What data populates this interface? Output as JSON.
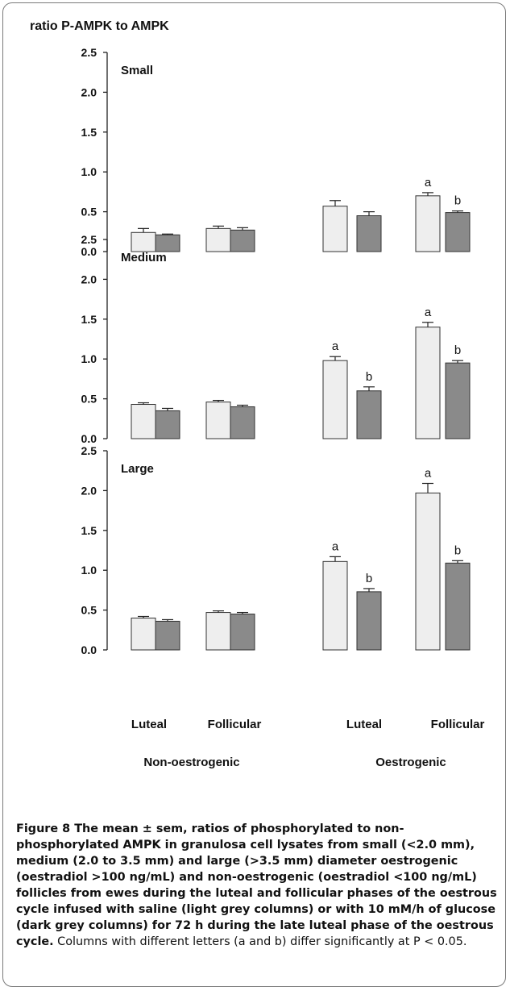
{
  "figure": {
    "ylabel": "ratio P-AMPK to AMPK",
    "caption_bold": "Figure 8 The mean ± sem, ratios of phosphorylated to non-phosphorylated AMPK in granulosa cell lysates from small (<2.0 mm), medium (2.0 to 3.5 mm) and large (>3.5 mm) diameter oestrogenic (oestradiol >100 ng/mL) and non-oestrogenic (oestradiol <100 ng/mL) follicles from ewes during the luteal and follicular phases of the oestrous cycle infused with saline (light grey columns) or with 10 mM/h of glucose (dark grey columns) for 72 h during the late luteal phase of the oestrous cycle.",
    "caption_rest": " Columns with different letters (a and b) differ significantly at P < 0.05.",
    "category_labels": [
      "Luteal",
      "Follicular",
      "Luteal",
      "Follicular"
    ],
    "group_labels": [
      "Non-oestrogenic",
      "Oestrogenic"
    ]
  },
  "chart_data": [
    {
      "type": "bar",
      "panel_title": "Small",
      "categories": [
        "Luteal",
        "Follicular",
        "Luteal",
        "Follicular"
      ],
      "groups": [
        "Non-oestrogenic",
        "Non-oestrogenic",
        "Oestrogenic",
        "Oestrogenic"
      ],
      "ylim": [
        0,
        2.5
      ],
      "yticks": [
        "0.0",
        "0.5",
        "1.0",
        "1.5",
        "2.0",
        "2.5"
      ],
      "series": [
        {
          "color": "#eeeeee",
          "values": [
            0.24,
            0.29,
            0.57,
            0.7
          ],
          "errors": [
            0.05,
            0.03,
            0.07,
            0.04
          ],
          "letters": [
            "",
            "",
            "",
            "a"
          ]
        },
        {
          "color": "#8a8a8a",
          "values": [
            0.21,
            0.27,
            0.45,
            0.49
          ],
          "errors": [
            0.01,
            0.03,
            0.05,
            0.02
          ],
          "letters": [
            "",
            "",
            "",
            "b"
          ]
        }
      ]
    },
    {
      "type": "bar",
      "panel_title": "Medium",
      "categories": [
        "Luteal",
        "Follicular",
        "Luteal",
        "Follicular"
      ],
      "groups": [
        "Non-oestrogenic",
        "Non-oestrogenic",
        "Oestrogenic",
        "Oestrogenic"
      ],
      "ylim": [
        0,
        2.5
      ],
      "yticks": [
        "0.0",
        "0.5",
        "1.0",
        "1.5",
        "2.0",
        "2.5"
      ],
      "series": [
        {
          "color": "#eeeeee",
          "values": [
            0.43,
            0.46,
            0.98,
            1.4
          ],
          "errors": [
            0.02,
            0.02,
            0.05,
            0.06
          ],
          "letters": [
            "",
            "",
            "a",
            "a"
          ]
        },
        {
          "color": "#8a8a8a",
          "values": [
            0.35,
            0.4,
            0.6,
            0.95
          ],
          "errors": [
            0.03,
            0.02,
            0.05,
            0.03
          ],
          "letters": [
            "",
            "",
            "b",
            "b"
          ]
        }
      ]
    },
    {
      "type": "bar",
      "panel_title": "Large",
      "categories": [
        "Luteal",
        "Follicular",
        "Luteal",
        "Follicular"
      ],
      "groups": [
        "Non-oestrogenic",
        "Non-oestrogenic",
        "Oestrogenic",
        "Oestrogenic"
      ],
      "ylim": [
        0,
        2.5
      ],
      "yticks": [
        "0.0",
        "0.5",
        "1.0",
        "1.5",
        "2.0",
        "2.5"
      ],
      "series": [
        {
          "color": "#eeeeee",
          "values": [
            0.4,
            0.47,
            1.11,
            1.97
          ],
          "errors": [
            0.02,
            0.02,
            0.06,
            0.12
          ],
          "letters": [
            "",
            "",
            "a",
            "a"
          ]
        },
        {
          "color": "#8a8a8a",
          "values": [
            0.36,
            0.45,
            0.73,
            1.09
          ],
          "errors": [
            0.02,
            0.02,
            0.04,
            0.03
          ],
          "letters": [
            "",
            "",
            "b",
            "b"
          ]
        }
      ]
    }
  ]
}
